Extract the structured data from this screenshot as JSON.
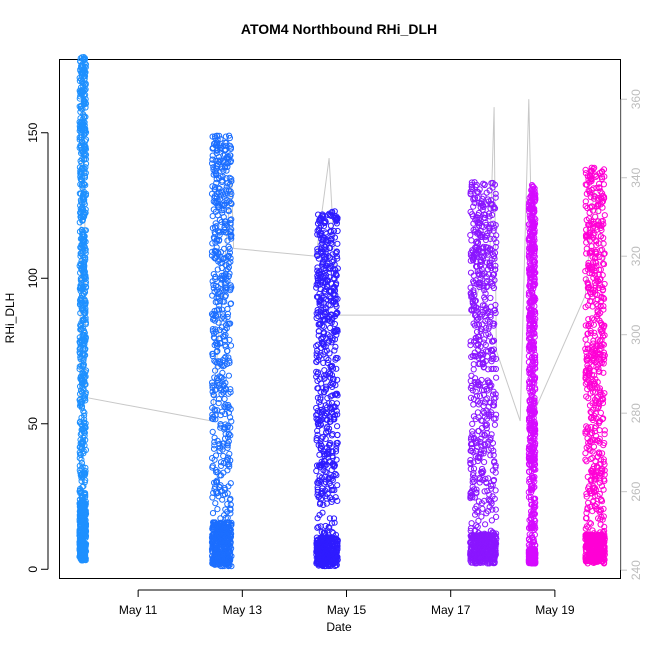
{
  "chart_data": {
    "type": "scatter",
    "title": "ATOM4 Northbound RHi_DLH",
    "xlabel": "Date",
    "ylabel": "RHi_DLH",
    "x_is_date": true,
    "xlim": [
      "2018-05-09T12:00",
      "2018-05-20T06:00"
    ],
    "ylim": [
      -3,
      175
    ],
    "y_ticks": [
      0,
      50,
      100,
      150
    ],
    "x_ticks": [
      {
        "date": "2018-05-11",
        "label": "May 11"
      },
      {
        "date": "2018-05-13",
        "label": "May 13"
      },
      {
        "date": "2018-05-15",
        "label": "May 15"
      },
      {
        "date": "2018-05-17",
        "label": "May 17"
      },
      {
        "date": "2018-05-19",
        "label": "May 19"
      }
    ],
    "right_axis": {
      "ylim": [
        238,
        370
      ],
      "ticks": [
        240,
        260,
        280,
        300,
        320,
        340,
        360
      ],
      "color": "#bdbdbd"
    },
    "grid": false,
    "series": [
      {
        "color": "#1E90FF",
        "segments": [
          {
            "start": "2018-05-09T21:00",
            "end": "2018-05-10T00:00",
            "ymin": 3,
            "ymax": 176,
            "density_peak": 20
          }
        ]
      },
      {
        "color": "#1C6EFF",
        "segments": [
          {
            "start": "2018-05-12T10:00",
            "end": "2018-05-12T19:00",
            "ymin": 1,
            "ymax": 149,
            "density_peak": 15
          }
        ]
      },
      {
        "color": "#2F1CFF",
        "segments": [
          {
            "start": "2018-05-14T10:00",
            "end": "2018-05-14T20:00",
            "ymin": 1,
            "ymax": 123,
            "density_peak": 10
          }
        ]
      },
      {
        "color": "#8A16FF",
        "segments": [
          {
            "start": "2018-05-17T09:00",
            "end": "2018-05-17T21:00",
            "ymin": 2,
            "ymax": 133,
            "density_peak": 10
          }
        ]
      },
      {
        "color": "#D50BFF",
        "segments": [
          {
            "start": "2018-05-18T12:00",
            "end": "2018-05-18T15:00",
            "ymin": 2,
            "ymax": 132,
            "density_peak": 5
          }
        ]
      },
      {
        "color": "#FF00D5",
        "segments": [
          {
            "start": "2018-05-19T14:00",
            "end": "2018-05-19T23:00",
            "ymin": 2,
            "ymax": 138,
            "density_peak": 10
          }
        ]
      }
    ],
    "temperature_line": {
      "color": "#c8c8c8",
      "axis": "right",
      "x": [
        "2018-05-09T21:00",
        "2018-05-09T22:00",
        "2018-05-09T23:00",
        "2018-05-10T00:00",
        "2018-05-12T10:00",
        "2018-05-12T19:00",
        "2018-05-12T20:00",
        "2018-05-14T10:00",
        "2018-05-14T16:00",
        "2018-05-14T20:00",
        "2018-05-17T09:00",
        "2018-05-17T18:00",
        "2018-05-17T20:00",
        "2018-05-17T21:00",
        "2018-05-18T08:00",
        "2018-05-18T12:00",
        "2018-05-18T15:00",
        "2018-05-19T14:00",
        "2018-05-19T18:00",
        "2018-05-19T23:00"
      ],
      "y": [
        282,
        355,
        365,
        284,
        278,
        340,
        322,
        320,
        345,
        305,
        305,
        320,
        358,
        296,
        278,
        360,
        281,
        310,
        337,
        318
      ]
    }
  }
}
